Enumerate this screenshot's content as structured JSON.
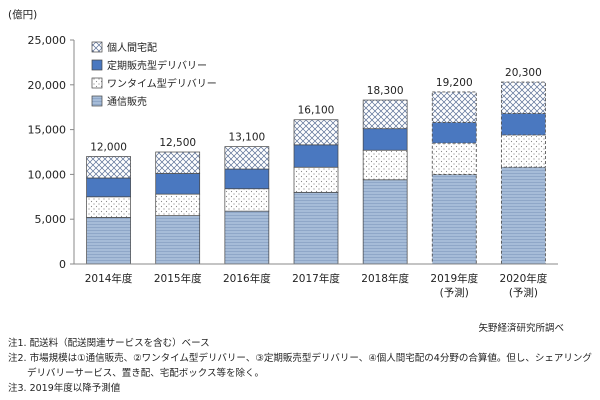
{
  "chart_data": {
    "type": "bar",
    "stacked": true,
    "unit_label": "(億円)",
    "categories": [
      "2014年度",
      "2015年度",
      "2016年度",
      "2017年度",
      "2018年度",
      "2019年度",
      "2020年度"
    ],
    "category_sublabels": [
      "",
      "",
      "",
      "",
      "",
      "(予測)",
      "(予測)"
    ],
    "totals": [
      "12,000",
      "12,500",
      "13,100",
      "16,100",
      "18,300",
      "19,200",
      "20,300"
    ],
    "total_values": [
      12000,
      12500,
      13100,
      16100,
      18300,
      19200,
      20300
    ],
    "forecast": [
      false,
      false,
      false,
      false,
      false,
      true,
      true
    ],
    "series": [
      {
        "name": "通信販売",
        "values": [
          5200,
          5400,
          5900,
          8000,
          9400,
          10000,
          10800
        ],
        "color": "#a6bcd8",
        "pattern": "hstripe"
      },
      {
        "name": "ワンタイム型デリバリー",
        "values": [
          2300,
          2400,
          2500,
          2800,
          3300,
          3500,
          3600
        ],
        "color": "#ffffff",
        "pattern": "dots"
      },
      {
        "name": "定期販売型デリバリー",
        "values": [
          2100,
          2300,
          2200,
          2500,
          2400,
          2300,
          2400
        ],
        "color": "#4a78c0",
        "pattern": "solid"
      },
      {
        "name": "個人間宅配",
        "values": [
          2400,
          2400,
          2500,
          2800,
          3200,
          3400,
          3500
        ],
        "color": "#ffffff",
        "pattern": "crosshatch"
      }
    ],
    "legend_order": [
      "個人間宅配",
      "定期販売型デリバリー",
      "ワンタイム型デリバリー",
      "通信販売"
    ],
    "y_ticks": [
      "0",
      "5,000",
      "10,000",
      "15,000",
      "20,000",
      "25,000"
    ],
    "ylim": [
      0,
      25000
    ],
    "grid": false,
    "legend_position": "top-left"
  },
  "source": "矢野経済研究所調べ",
  "notes": [
    "注1. 配送料（配送関連サービスを含む）ベース",
    "注2. 市場規模は①通信販売、②ワンタイム型デリバリー、③定期販売型デリバリー、④個人間宅配の4分野の合算値。但し、シェアリング",
    "　　デリバリーサービス、置き配、宅配ボックス等を除く。",
    "注3. 2019年度以降予測値"
  ]
}
